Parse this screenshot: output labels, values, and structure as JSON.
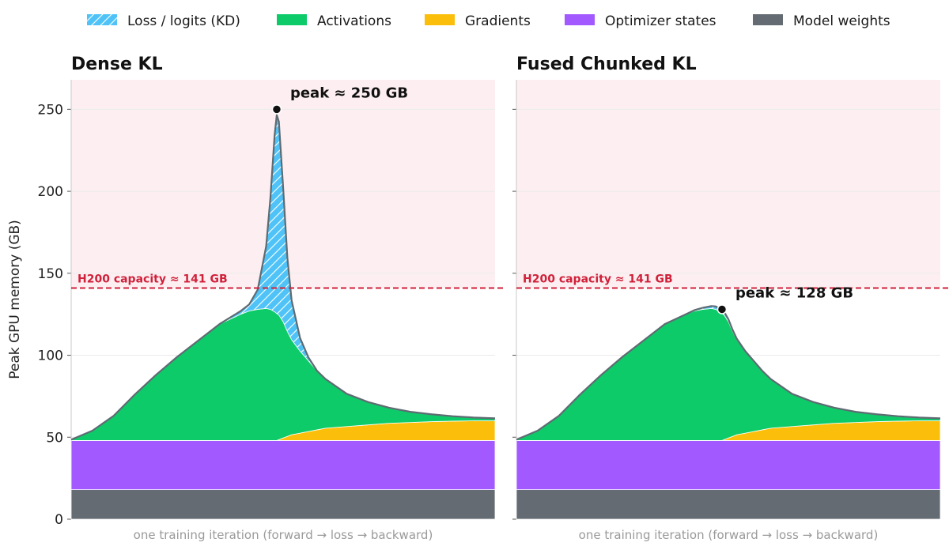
{
  "legend": [
    {
      "label": "Loss / logits (KD)",
      "color": "#4fc3f7",
      "pattern": "hatch"
    },
    {
      "label": "Activations",
      "color": "#0ecb69"
    },
    {
      "label": "Gradients",
      "color": "#fbbf0b"
    },
    {
      "label": "Optimizer states",
      "color": "#a259ff"
    },
    {
      "label": "Model weights",
      "color": "#656b73"
    }
  ],
  "colors": {
    "weights": "#656b73",
    "optimizer": "#a259ff",
    "gradients": "#fbbf0b",
    "activations": "#0ecb69",
    "loss": "#4fc3f7",
    "capacity_line": "#d0203a",
    "danger_zone": "#fdeff1",
    "outline": "#5f6b72"
  },
  "shared": {
    "ylabel": "Peak GPU memory (GB)",
    "xlabel": "one training iteration  (forward → loss → backward)",
    "capacity_label": "H200 capacity ≈ 141 GB"
  },
  "chart_data": [
    {
      "type": "area",
      "title": "Dense KL",
      "stacked": true,
      "xlim": [
        0,
        1
      ],
      "ylim": [
        0,
        268
      ],
      "yticks": [
        0,
        50,
        100,
        150,
        200,
        250
      ],
      "grid": true,
      "legend_position": "top",
      "hline": {
        "y": 141,
        "label": "H200 capacity ≈ 141 GB"
      },
      "annotation": {
        "text": "peak ≈ 250 GB",
        "x": 0.485,
        "y": 250
      },
      "x": [
        0,
        0.05,
        0.1,
        0.15,
        0.2,
        0.25,
        0.3,
        0.35,
        0.4,
        0.42,
        0.44,
        0.46,
        0.47,
        0.48,
        0.485,
        0.49,
        0.5,
        0.51,
        0.52,
        0.54,
        0.56,
        0.58,
        0.6,
        0.65,
        0.7,
        0.75,
        0.8,
        0.85,
        0.9,
        0.95,
        1.0
      ],
      "series": [
        {
          "name": "Model weights",
          "values": [
            18,
            18,
            18,
            18,
            18,
            18,
            18,
            18,
            18,
            18,
            18,
            18,
            18,
            18,
            18,
            18,
            18,
            18,
            18,
            18,
            18,
            18,
            18,
            18,
            18,
            18,
            18,
            18,
            18,
            18,
            18
          ]
        },
        {
          "name": "Optimizer states",
          "values": [
            30,
            30,
            30,
            30,
            30,
            30,
            30,
            30,
            30,
            30,
            30,
            30,
            30,
            30,
            30,
            30,
            30,
            30,
            30,
            30,
            30,
            30,
            30,
            30,
            30,
            30,
            30,
            30,
            30,
            30,
            30
          ]
        },
        {
          "name": "Gradients",
          "values": [
            0,
            0,
            0,
            0,
            0,
            0,
            0,
            0,
            0,
            0,
            0,
            0,
            0,
            0,
            0,
            0.5,
            1.5,
            2.5,
            3.5,
            4.5,
            5.5,
            6.5,
            7.5,
            8.5,
            9.5,
            10.5,
            11,
            11.5,
            11.8,
            12,
            12
          ]
        },
        {
          "name": "Activations",
          "values": [
            0.5,
            6,
            15,
            28,
            40,
            51,
            61,
            71,
            77,
            79,
            80,
            80.5,
            80,
            78.5,
            77.5,
            76,
            71,
            64,
            58,
            50,
            43,
            36,
            30,
            20,
            14,
            9.5,
            6.5,
            4.5,
            3,
            2,
            1.5
          ]
        },
        {
          "name": "Loss / logits (KD)",
          "values": [
            0,
            0,
            0,
            0,
            0,
            0,
            0,
            0,
            2,
            4,
            12,
            38,
            68,
            108,
            121,
            118,
            82,
            45,
            24,
            8,
            2,
            0,
            0,
            0,
            0,
            0,
            0,
            0,
            0,
            0,
            0
          ]
        }
      ]
    },
    {
      "type": "area",
      "title": "Fused Chunked KL",
      "stacked": true,
      "xlim": [
        0,
        1
      ],
      "ylim": [
        0,
        268
      ],
      "yticks": [
        0,
        50,
        100,
        150,
        200,
        250
      ],
      "grid": true,
      "hline": {
        "y": 141,
        "label": "H200 capacity ≈ 141 GB"
      },
      "annotation": {
        "text": "peak ≈ 128 GB",
        "x": 0.485,
        "y": 128
      },
      "x": [
        0,
        0.05,
        0.1,
        0.15,
        0.2,
        0.25,
        0.3,
        0.35,
        0.4,
        0.42,
        0.44,
        0.46,
        0.47,
        0.48,
        0.485,
        0.49,
        0.5,
        0.51,
        0.52,
        0.54,
        0.56,
        0.58,
        0.6,
        0.65,
        0.7,
        0.75,
        0.8,
        0.85,
        0.9,
        0.95,
        1.0
      ],
      "series": [
        {
          "name": "Model weights",
          "values": [
            18,
            18,
            18,
            18,
            18,
            18,
            18,
            18,
            18,
            18,
            18,
            18,
            18,
            18,
            18,
            18,
            18,
            18,
            18,
            18,
            18,
            18,
            18,
            18,
            18,
            18,
            18,
            18,
            18,
            18,
            18
          ]
        },
        {
          "name": "Optimizer states",
          "values": [
            30,
            30,
            30,
            30,
            30,
            30,
            30,
            30,
            30,
            30,
            30,
            30,
            30,
            30,
            30,
            30,
            30,
            30,
            30,
            30,
            30,
            30,
            30,
            30,
            30,
            30,
            30,
            30,
            30,
            30,
            30
          ]
        },
        {
          "name": "Gradients",
          "values": [
            0,
            0,
            0,
            0,
            0,
            0,
            0,
            0,
            0,
            0,
            0,
            0,
            0,
            0,
            0,
            0.5,
            1.5,
            2.5,
            3.5,
            4.5,
            5.5,
            6.5,
            7.5,
            8.5,
            9.5,
            10.5,
            11,
            11.5,
            11.8,
            12,
            12
          ]
        },
        {
          "name": "Activations",
          "values": [
            0.5,
            6,
            15,
            28,
            40,
            51,
            61,
            71,
            77,
            79,
            80,
            80.5,
            80,
            78.5,
            77.5,
            76,
            71,
            64,
            58,
            50,
            43,
            36,
            30,
            20,
            14,
            9.5,
            6.5,
            4.5,
            3,
            2,
            1.5
          ]
        },
        {
          "name": "Loss / logits (KD)",
          "values": [
            0,
            0,
            0,
            0,
            0,
            0,
            0,
            0,
            0,
            0.5,
            1,
            1.5,
            1.8,
            2,
            2,
            2,
            1.5,
            1,
            0.5,
            0,
            0,
            0,
            0,
            0,
            0,
            0,
            0,
            0,
            0,
            0,
            0
          ]
        }
      ]
    }
  ]
}
